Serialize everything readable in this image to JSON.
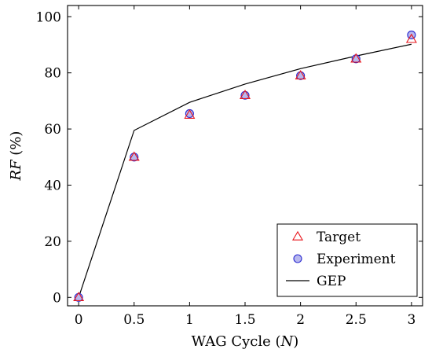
{
  "chart_data": {
    "type": "scatter",
    "xlabel": {
      "prefix": "WAG Cycle (",
      "var": "N",
      "suffix": ")"
    },
    "ylabel": {
      "var": "RF",
      "suffix": " (%)"
    },
    "xlim": [
      -0.1,
      3.1
    ],
    "ylim": [
      -3,
      104
    ],
    "x_ticks": [
      0,
      0.5,
      1,
      1.5,
      2,
      2.5,
      3
    ],
    "x_tick_labels": [
      "0",
      "0.5",
      "1",
      "1.5",
      "2",
      "2.5",
      "3"
    ],
    "y_ticks": [
      0,
      20,
      40,
      60,
      80,
      100
    ],
    "y_tick_labels": [
      "0",
      "20",
      "40",
      "60",
      "80",
      "100"
    ],
    "grid": false,
    "legend_position": "bottom-right",
    "series": [
      {
        "name": "Target",
        "marker": "triangle",
        "color": "#e8141b",
        "x": [
          0,
          0.5,
          1,
          1.5,
          2,
          2.5,
          3
        ],
        "y": [
          0,
          50,
          65,
          72,
          79,
          85,
          92
        ]
      },
      {
        "name": "Experiment",
        "marker": "circle",
        "color": "#2a2ad0",
        "fill": "#b8b8ee",
        "x": [
          0,
          0.5,
          1,
          1.5,
          2,
          2.5,
          3
        ],
        "y": [
          0,
          50,
          65.5,
          72,
          79,
          85,
          93.5
        ]
      },
      {
        "name": "GEP",
        "marker": "line",
        "color": "#000000",
        "x": [
          0,
          0.5,
          1,
          1.5,
          2,
          2.5,
          3
        ],
        "y": [
          0,
          59.5,
          69.5,
          76,
          81.5,
          86,
          90.2
        ]
      }
    ]
  }
}
